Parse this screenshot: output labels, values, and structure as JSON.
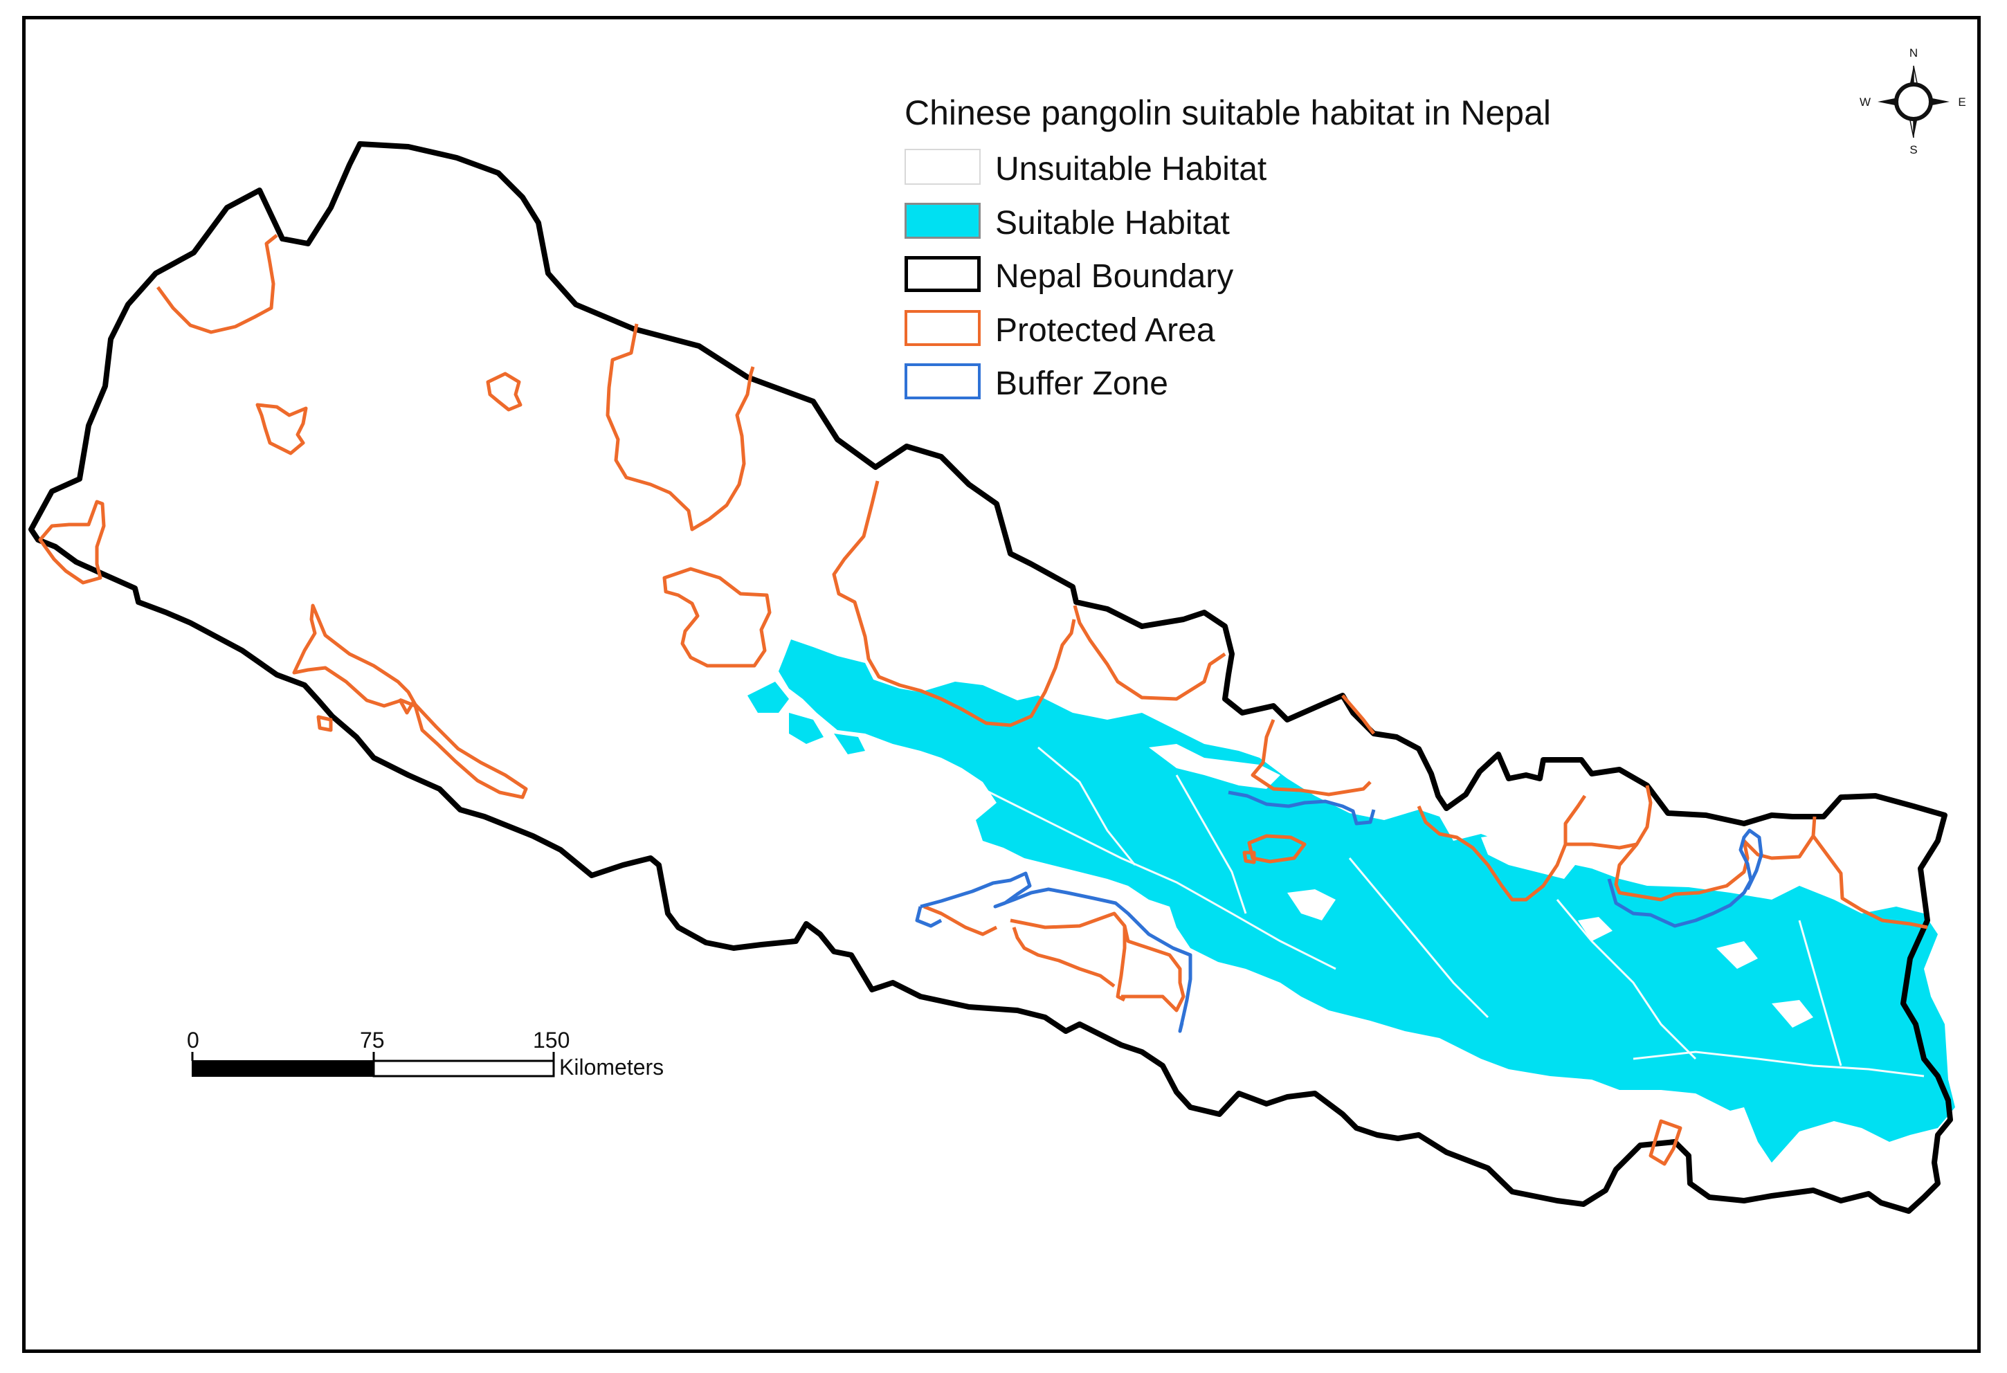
{
  "legend": {
    "title": "Chinese pangolin suitable habitat in Nepal",
    "items": [
      {
        "label": "Unsuitable Habitat",
        "fill": "#ffffff",
        "stroke": "#d8d8d8"
      },
      {
        "label": "Suitable Habitat",
        "fill": "#00e0f2",
        "stroke": "#8a8a8a"
      },
      {
        "label": "Nepal Boundary",
        "fill": "#ffffff",
        "stroke": "#000000"
      },
      {
        "label": "Protected Area",
        "fill": "#ffffff",
        "stroke": "#ee6a2b"
      },
      {
        "label": "Buffer Zone",
        "fill": "#ffffff",
        "stroke": "#2f72d6"
      }
    ]
  },
  "scale_bar": {
    "ticks": [
      "0",
      "75",
      "150"
    ],
    "unit": "Kilometers"
  },
  "compass": {
    "n": "N",
    "s": "S",
    "e": "E",
    "w": "W"
  },
  "colors": {
    "boundary": "#000000",
    "protected_area": "#ee6a2b",
    "buffer_zone": "#2f72d6",
    "suitable_habitat": "#00e0f2"
  }
}
